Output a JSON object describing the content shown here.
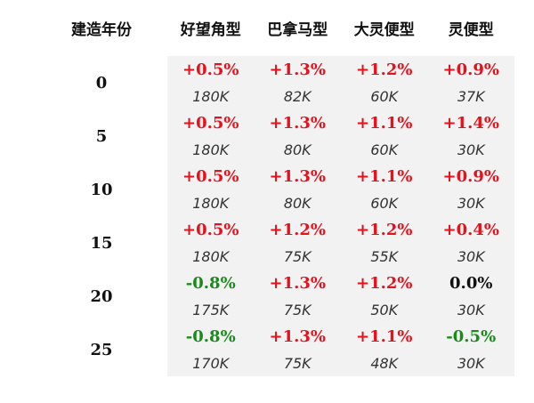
{
  "table": {
    "headers": [
      "建造年份",
      "好望角型",
      "巴拿马型",
      "大灵便型",
      "灵便型"
    ],
    "rows": [
      {
        "year": "0",
        "changes": [
          {
            "text": "+0.5%",
            "tone": "pos"
          },
          {
            "text": "+1.3%",
            "tone": "pos"
          },
          {
            "text": "+1.2%",
            "tone": "pos"
          },
          {
            "text": "+0.9%",
            "tone": "pos"
          }
        ],
        "prices": [
          "180K",
          "82K",
          "60K",
          "37K"
        ]
      },
      {
        "year": "5",
        "changes": [
          {
            "text": "+0.5%",
            "tone": "pos"
          },
          {
            "text": "+1.3%",
            "tone": "pos"
          },
          {
            "text": "+1.1%",
            "tone": "pos"
          },
          {
            "text": "+1.4%",
            "tone": "pos"
          }
        ],
        "prices": [
          "180K",
          "80K",
          "60K",
          "30K"
        ]
      },
      {
        "year": "10",
        "changes": [
          {
            "text": "+0.5%",
            "tone": "pos"
          },
          {
            "text": "+1.3%",
            "tone": "pos"
          },
          {
            "text": "+1.1%",
            "tone": "pos"
          },
          {
            "text": "+0.9%",
            "tone": "pos"
          }
        ],
        "prices": [
          "180K",
          "80K",
          "60K",
          "30K"
        ]
      },
      {
        "year": "15",
        "changes": [
          {
            "text": "+0.5%",
            "tone": "pos"
          },
          {
            "text": "+1.2%",
            "tone": "pos"
          },
          {
            "text": "+1.2%",
            "tone": "pos"
          },
          {
            "text": "+0.4%",
            "tone": "pos"
          }
        ],
        "prices": [
          "180K",
          "75K",
          "55K",
          "30K"
        ]
      },
      {
        "year": "20",
        "changes": [
          {
            "text": "-0.8%",
            "tone": "neg"
          },
          {
            "text": "+1.3%",
            "tone": "pos"
          },
          {
            "text": "+1.2%",
            "tone": "pos"
          },
          {
            "text": "0.0%",
            "tone": "zero"
          }
        ],
        "prices": [
          "175K",
          "75K",
          "50K",
          "30K"
        ]
      },
      {
        "year": "25",
        "changes": [
          {
            "text": "-0.8%",
            "tone": "neg"
          },
          {
            "text": "+1.3%",
            "tone": "pos"
          },
          {
            "text": "+1.1%",
            "tone": "pos"
          },
          {
            "text": "-0.5%",
            "tone": "neg"
          }
        ],
        "prices": [
          "170K",
          "75K",
          "48K",
          "30K"
        ]
      }
    ]
  },
  "colors": {
    "positive": "#e8101a",
    "negative": "#1a8a1a",
    "neutral": "#111111",
    "cell_background": "#f2f2f2"
  }
}
